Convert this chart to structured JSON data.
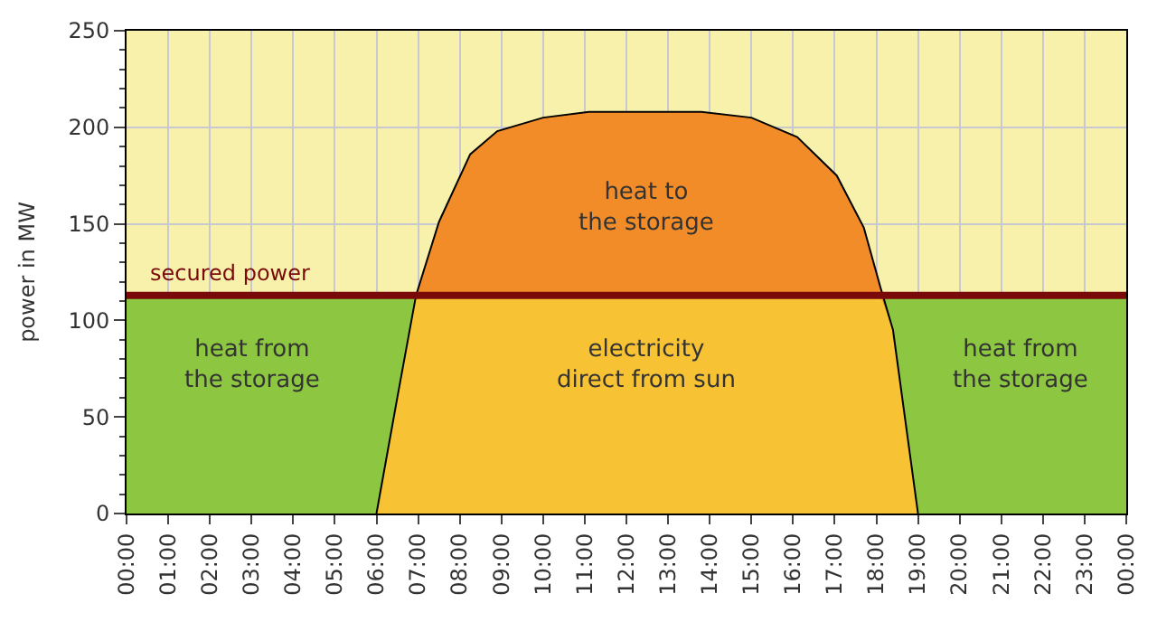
{
  "chart_data": {
    "type": "area",
    "stacked": true,
    "ylabel": "power in MW",
    "x": [
      6,
      6.5,
      6.95,
      7.5,
      8.25,
      8.9,
      10,
      11.1,
      12.5,
      13.8,
      15,
      16.1,
      17.05,
      17.7,
      18.1,
      18.4,
      19
    ],
    "series": [
      {
        "color": "#f7c234",
        "values": [
          0,
          60,
          113,
          113,
          113,
          113,
          113,
          113,
          113,
          113,
          113,
          113,
          113,
          113,
          113,
          95,
          0
        ]
      },
      {
        "color": "#f28c28",
        "values": [
          0,
          0,
          0,
          38,
          73,
          85,
          92,
          95,
          95,
          95,
          92,
          82,
          62,
          35,
          4,
          0,
          0
        ]
      }
    ],
    "xlim": [
      0,
      24
    ],
    "xticks": [
      {
        "value": 0,
        "label": "00:00"
      },
      {
        "value": 1,
        "label": "01:00"
      },
      {
        "value": 2,
        "label": "02:00"
      },
      {
        "value": 3,
        "label": "03:00"
      },
      {
        "value": 4,
        "label": "04:00"
      },
      {
        "value": 5,
        "label": "05:00"
      },
      {
        "value": 6,
        "label": "06:00"
      },
      {
        "value": 7,
        "label": "07:00"
      },
      {
        "value": 8,
        "label": "08:00"
      },
      {
        "value": 9,
        "label": "09:00"
      },
      {
        "value": 10,
        "label": "10:00"
      },
      {
        "value": 11,
        "label": "11:00"
      },
      {
        "value": 12,
        "label": "12:00"
      },
      {
        "value": 13,
        "label": "13:00"
      },
      {
        "value": 14,
        "label": "14:00"
      },
      {
        "value": 15,
        "label": "15:00"
      },
      {
        "value": 16,
        "label": "16:00"
      },
      {
        "value": 17,
        "label": "17:00"
      },
      {
        "value": 18,
        "label": "18:00"
      },
      {
        "value": 19,
        "label": "19:00"
      },
      {
        "value": 20,
        "label": "20:00"
      },
      {
        "value": 21,
        "label": "21:00"
      },
      {
        "value": 22,
        "label": "22:00"
      },
      {
        "value": 23,
        "label": "23:00"
      },
      {
        "value": 24,
        "label": "00:00"
      }
    ],
    "ylim": [
      0,
      250
    ],
    "yticks": [
      0,
      50,
      100,
      150,
      200,
      250
    ],
    "grid": true,
    "ref_lines": [
      {
        "axis": "y",
        "value": 113,
        "label": "secured power",
        "color": "#7a0a0a"
      }
    ],
    "bands": [
      {
        "axis": "y",
        "from": 0,
        "to": 113,
        "color": "#8dc641"
      }
    ],
    "annotations": [
      "heat from\nthe storage",
      "heat to\nthe storage",
      "electricity\ndirect from sun",
      "heat from\nthe storage"
    ]
  }
}
